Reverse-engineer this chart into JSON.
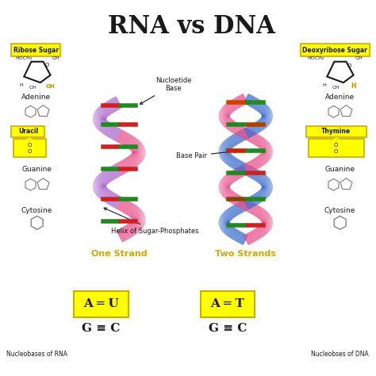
{
  "title": "RNA vs DNA",
  "bg_color": "#ffffff",
  "title_color": "#1a1a1a",
  "yellow": "#ffff00",
  "pink": "#e8508a",
  "blue": "#3366cc",
  "purple": "#aa66cc",
  "dark": "#1a1a1a",
  "red": "#cc2222",
  "green": "#228822",
  "left_labels": {
    "sugar": "Ribose Sugar",
    "adenine": "Adenine",
    "uracil": "Uracil",
    "guanine": "Guanine",
    "cytosine": "Cytosine",
    "nucleobases": "Nucleobases of RNA"
  },
  "right_labels": {
    "sugar": "Deoxyribose Sugar",
    "adenine": "Adenine",
    "thymine": "Thymine",
    "guanine": "Guanine",
    "cytosine": "Cytosine",
    "nucleobases": "Nucleobses of DNA"
  },
  "center_labels": {
    "nucleotide": "Nucloetide\nBase",
    "base_pair": "Base Pair",
    "helix": "Helix of Sugar-Phosphates",
    "one_strand": "One Strand",
    "two_strands": "Two Strands"
  }
}
